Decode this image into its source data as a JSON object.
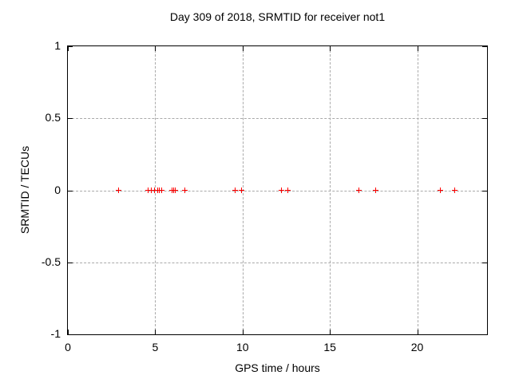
{
  "figure": {
    "background": "#ffffff",
    "border_color": "#000000",
    "grid_color": "#a9a9a9"
  },
  "chart_data": {
    "type": "scatter",
    "title": "Day 309 of 2018, SRMTID for receiver not1",
    "xlabel": "GPS time / hours",
    "ylabel": "SRMTID / TECUs",
    "xlim": [
      0,
      24
    ],
    "ylim": [
      -1,
      1
    ],
    "grid": true,
    "legend_position": "none",
    "xticks": [
      {
        "value": 0,
        "label": "0"
      },
      {
        "value": 5,
        "label": "5"
      },
      {
        "value": 10,
        "label": "10"
      },
      {
        "value": 15,
        "label": "15"
      },
      {
        "value": 20,
        "label": "20"
      }
    ],
    "yticks": [
      {
        "value": 1,
        "label": "1"
      },
      {
        "value": 0.5,
        "label": "0.5"
      },
      {
        "value": 0,
        "label": "0"
      },
      {
        "value": -0.5,
        "label": "-0.5"
      },
      {
        "value": -1,
        "label": "-1"
      }
    ],
    "series": [
      {
        "name": "SRMTID",
        "marker": "plus",
        "color": "#ff0000",
        "points": [
          {
            "x": 2.92,
            "y": 0
          },
          {
            "x": 4.61,
            "y": 0
          },
          {
            "x": 4.79,
            "y": 0
          },
          {
            "x": 4.98,
            "y": 0
          },
          {
            "x": 5.12,
            "y": 0
          },
          {
            "x": 5.24,
            "y": 0
          },
          {
            "x": 5.35,
            "y": 0
          },
          {
            "x": 5.97,
            "y": 0
          },
          {
            "x": 6.05,
            "y": 0
          },
          {
            "x": 6.13,
            "y": 0
          },
          {
            "x": 6.71,
            "y": 0
          },
          {
            "x": 9.58,
            "y": 0
          },
          {
            "x": 9.92,
            "y": 0
          },
          {
            "x": 12.21,
            "y": 0
          },
          {
            "x": 12.59,
            "y": 0
          },
          {
            "x": 16.65,
            "y": 0
          },
          {
            "x": 17.64,
            "y": 0
          },
          {
            "x": 21.34,
            "y": 0
          },
          {
            "x": 22.17,
            "y": 0
          }
        ]
      }
    ]
  }
}
